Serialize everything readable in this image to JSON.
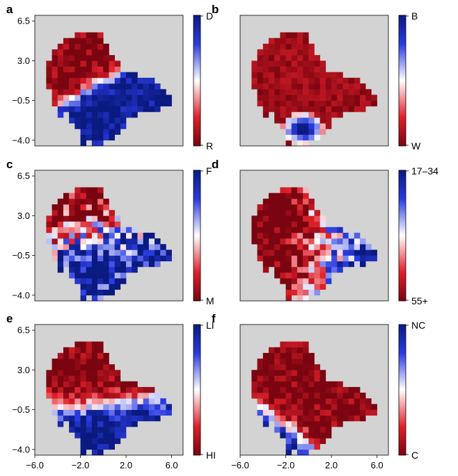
{
  "chart_data": [
    {
      "type": "heatmap",
      "panel_label": "a",
      "colorbar": {
        "top": "D",
        "bottom": "R"
      },
      "xlim": [
        -6.0,
        7.0
      ],
      "ylim": [
        -4.5,
        7.0
      ],
      "x_ticks": [],
      "y_ticks": [
        "6.5",
        "3.0",
        "−0.5",
        "−4.0"
      ],
      "pattern": {
        "kind": "gradient",
        "direction": [
          0.55,
          -1.0
        ],
        "center": [
          -0.5,
          1.0
        ],
        "scale": 1.3,
        "noise": 0.35
      }
    },
    {
      "type": "heatmap",
      "panel_label": "b",
      "colorbar": {
        "top": "B",
        "bottom": "W"
      },
      "xlim": [
        -6.0,
        7.0
      ],
      "ylim": [
        -4.5,
        7.0
      ],
      "x_ticks": [],
      "y_ticks": [],
      "pattern": {
        "kind": "blob",
        "center": [
          -0.5,
          -3.0
        ],
        "radius": 1.8,
        "base": -0.85,
        "peak": 1.0,
        "noise": 0.15
      }
    },
    {
      "type": "heatmap",
      "panel_label": "c",
      "colorbar": {
        "top": "F",
        "bottom": "M"
      },
      "xlim": [
        -6.0,
        7.0
      ],
      "ylim": [
        -4.5,
        7.0
      ],
      "x_ticks": [],
      "y_ticks": [
        "6.5",
        "3.0",
        "−0.5",
        "−4.0"
      ],
      "pattern": {
        "kind": "gradient",
        "direction": [
          0.25,
          -1.0
        ],
        "center": [
          -0.5,
          1.5
        ],
        "scale": 0.45,
        "noise": 0.75
      }
    },
    {
      "type": "heatmap",
      "panel_label": "d",
      "colorbar": {
        "top": "17–34",
        "bottom": "55+"
      },
      "xlim": [
        -6.0,
        7.0
      ],
      "ylim": [
        -4.5,
        7.0
      ],
      "x_ticks": [],
      "y_ticks": [],
      "pattern": {
        "kind": "gradient",
        "direction": [
          1.0,
          -0.1
        ],
        "center": [
          0.5,
          0.0
        ],
        "scale": 0.35,
        "offset": -0.35,
        "noise": 0.6
      }
    },
    {
      "type": "heatmap",
      "panel_label": "e",
      "colorbar": {
        "top": "LI",
        "bottom": "HI"
      },
      "xlim": [
        -6.0,
        7.0
      ],
      "ylim": [
        -4.5,
        7.0
      ],
      "x_ticks": [
        "−6.0",
        "−2.0",
        "2.0",
        "6.0"
      ],
      "y_ticks": [
        "6.5",
        "3.0",
        "−0.5",
        "−4.0"
      ],
      "pattern": {
        "kind": "gradient",
        "direction": [
          0.1,
          -1.0
        ],
        "center": [
          -0.5,
          0.0
        ],
        "scale": 0.9,
        "noise": 0.35
      }
    },
    {
      "type": "heatmap",
      "panel_label": "f",
      "colorbar": {
        "top": "NC",
        "bottom": "C"
      },
      "xlim": [
        -6.0,
        7.0
      ],
      "ylim": [
        -4.5,
        7.0
      ],
      "x_ticks": [
        "−6.0",
        "−2.0",
        "2.0",
        "6.0"
      ],
      "y_ticks": [],
      "pattern": {
        "kind": "gradient",
        "direction": [
          -0.8,
          -1.0
        ],
        "center": [
          -2.5,
          -1.5
        ],
        "scale": 0.9,
        "noise": 0.35
      }
    }
  ],
  "colors": {
    "background": "#d3d3d3",
    "high": "#0a1a80",
    "mid": "#ffffff",
    "low": "#7a0410"
  }
}
